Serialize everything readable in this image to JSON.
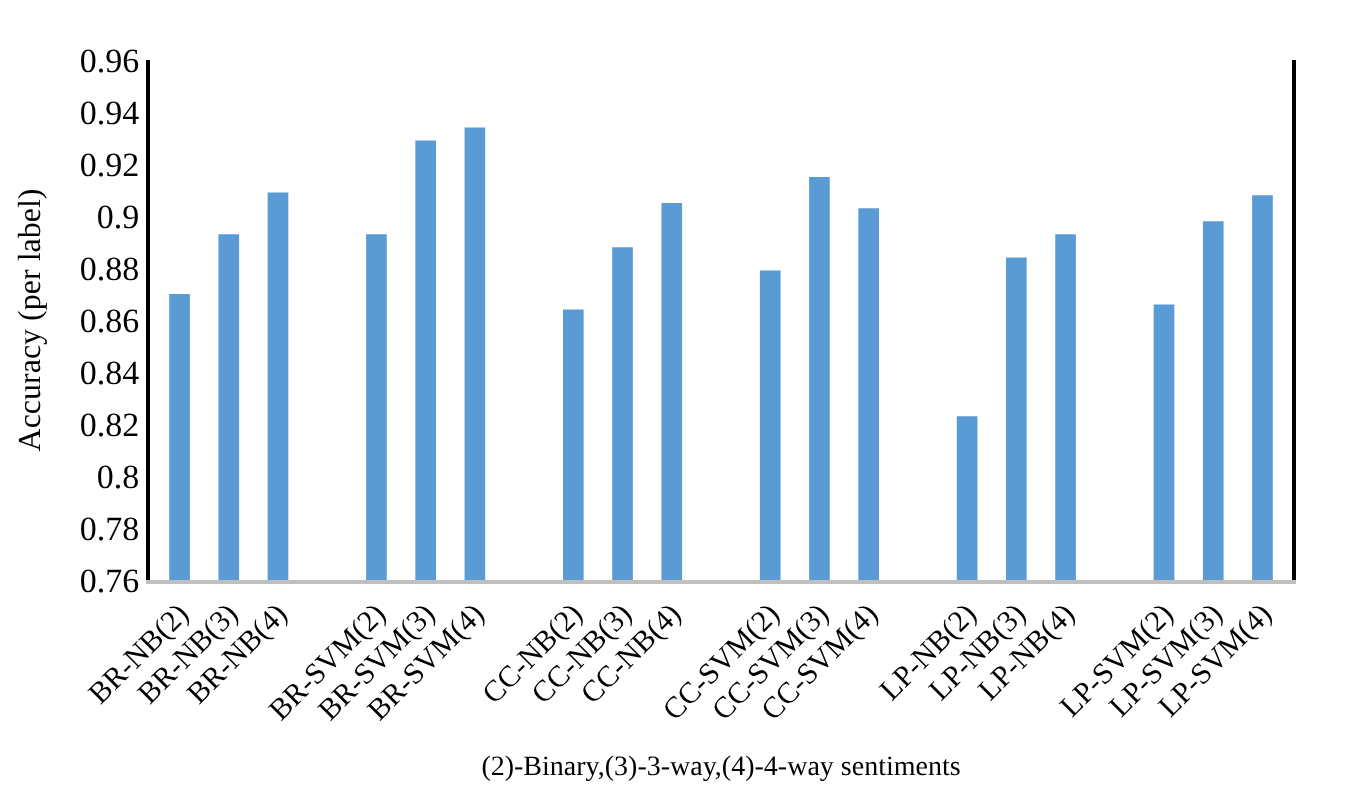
{
  "chart_data": {
    "type": "bar",
    "categories": [
      "BR-NB(2)",
      "BR-NB(3)",
      "BR-NB(4)",
      null,
      "BR-SVM(2)",
      "BR-SVM(3)",
      "BR-SVM(4)",
      null,
      "CC-NB(2)",
      "CC-NB(3)",
      "CC-NB(4)",
      null,
      "CC-SVM(2)",
      "CC-SVM(3)",
      "CC-SVM(4)",
      null,
      "LP-NB(2)",
      "LP-NB(3)",
      "LP-NB(4)",
      null,
      "LP-SVM(2)",
      "LP-SVM(3)",
      "LP-SVM(4)"
    ],
    "values": [
      0.87,
      0.893,
      0.909,
      null,
      0.893,
      0.929,
      0.934,
      null,
      0.864,
      0.888,
      0.905,
      null,
      0.879,
      0.915,
      0.903,
      null,
      0.823,
      0.884,
      0.893,
      null,
      0.866,
      0.898,
      0.908
    ],
    "color": "#5b9bd5",
    "xlabel": "(2)-Binary,(3)-3-way,(4)-4-way sentiments",
    "ylabel": "Accuracy (per label)",
    "ylim": [
      0.76,
      0.96
    ],
    "yticks": [
      0.76,
      0.78,
      {
        "value": 0.8,
        "label": "0.8"
      },
      0.82,
      0.84,
      0.86,
      0.88,
      {
        "value": 0.9,
        "label": "0.9"
      },
      0.92,
      0.94,
      0.96
    ],
    "legend": false
  }
}
